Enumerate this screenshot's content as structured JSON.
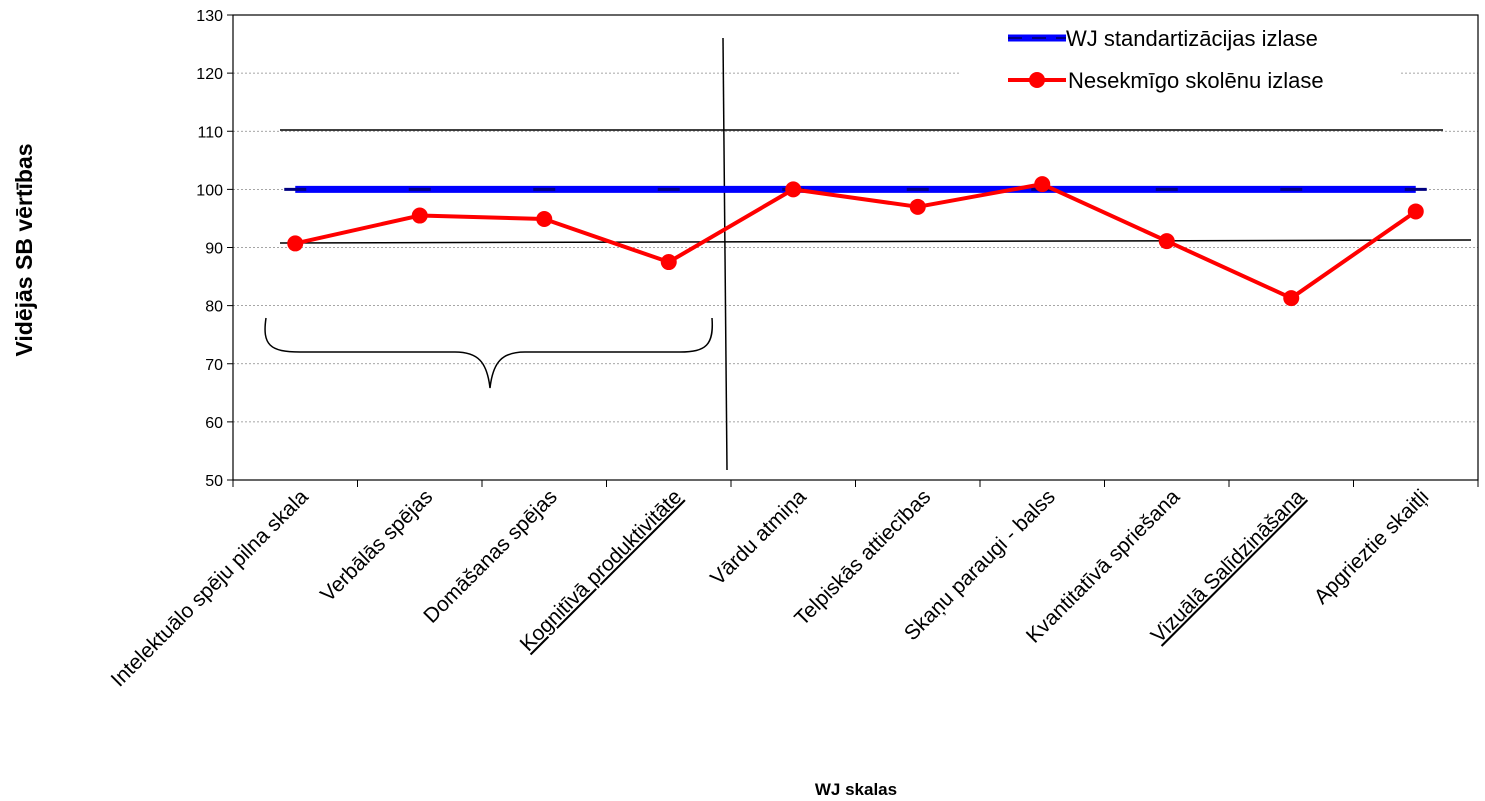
{
  "chart_data": {
    "type": "line",
    "title": "",
    "xlabel": "WJ skalas",
    "ylabel": "Vidējās SB vērtības",
    "ylim": [
      50,
      130
    ],
    "yticks": [
      50,
      60,
      70,
      80,
      90,
      100,
      110,
      120,
      130
    ],
    "grid": "horizontal dotted",
    "legend": "top-right",
    "categories": [
      "Intelektuālo spēju pilna skala",
      "Verbālās spējas",
      "Domāšanas spējas",
      "Kognitīvā produktivitāte",
      "Vārdu atmiņa",
      "Telpiskās attiecības",
      "Skaņu paraugi - balss",
      "Kvantitatīvā spriešana",
      "Vizuālā Salīdzināšana",
      "Apgrieztie skaitļi"
    ],
    "underlined_categories": [
      "Kognitīvā produktivitāte",
      "Vizuālā Salīdzināšana"
    ],
    "series": [
      {
        "name": "WJ standartizācijas izlase",
        "color": "#0000ff",
        "values": [
          100,
          100,
          100,
          100,
          100,
          100,
          100,
          100,
          100,
          100
        ]
      },
      {
        "name": "Nesekmīgo skolēnu izlase",
        "color": "#ff0000",
        "values": [
          90.7,
          95.5,
          94.9,
          87.5,
          100,
          97,
          100.9,
          91.1,
          81.3,
          96.2
        ]
      }
    ],
    "reference_lines": [
      110,
      90
    ]
  }
}
